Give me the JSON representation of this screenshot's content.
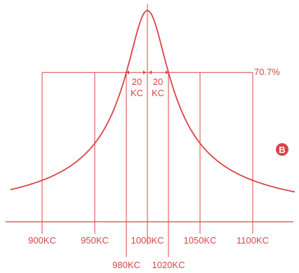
{
  "chart_data": {
    "type": "line",
    "title": "",
    "xlabel": "",
    "ylabel": "",
    "x_ticks": [
      "900KC",
      "950KC",
      "1000KC",
      "1050KC",
      "1100KC"
    ],
    "x_tick_values": [
      900,
      950,
      1000,
      1050,
      1100
    ],
    "bandwidth_ticks": [
      "980KC",
      "1020KC"
    ],
    "bandwidth_tick_values": [
      980,
      1020
    ],
    "reference_level_label": "70.7%",
    "reference_level": 0.707,
    "half_bandwidth_labels": [
      "20",
      "KC",
      "20",
      "KC"
    ],
    "marker": "B",
    "x_range": [
      870,
      1140
    ],
    "y_range": [
      0,
      1.0
    ],
    "series": [
      {
        "x": [
          870,
          900,
          925,
          950,
          970,
          980,
          990,
          1000,
          1010,
          1020,
          1030,
          1050,
          1075,
          1100,
          1140
        ],
        "values": [
          0.02,
          0.07,
          0.19,
          0.39,
          0.56,
          0.707,
          0.89,
          1.0,
          0.89,
          0.707,
          0.56,
          0.39,
          0.19,
          0.07,
          0.02
        ]
      }
    ],
    "grid": true,
    "color": "#d84545"
  }
}
